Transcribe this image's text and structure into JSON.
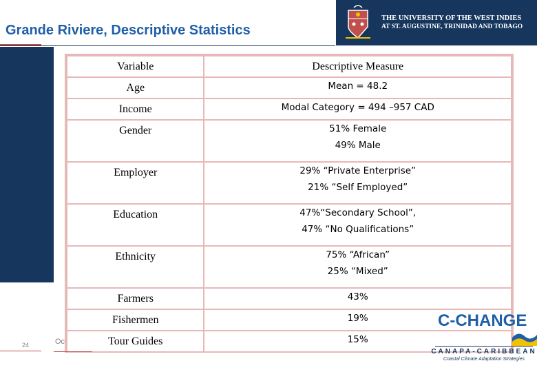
{
  "header": {
    "title": "Grande Riviere, Descriptive Statistics",
    "university_line1": "THE UNIVERSITY OF THE WEST INDIES",
    "university_line2": "AT ST. AUGUSTINE, TRINIDAD AND TOBAGO"
  },
  "table": {
    "headers": {
      "variable": "Variable",
      "measure": "Descriptive Measure"
    },
    "rows": [
      {
        "variable": "Age",
        "measure": [
          "Mean = 48.2"
        ]
      },
      {
        "variable": "Income",
        "measure": [
          "Modal Category = 494 –957 CAD"
        ]
      },
      {
        "variable": "Gender",
        "measure": [
          "51% Female",
          "49% Male"
        ]
      },
      {
        "variable": "Employer",
        "measure": [
          "29% “Private Enterprise”",
          "21% “Self Employed”"
        ]
      },
      {
        "variable": "Education",
        "measure": [
          "47%“Secondary School”,",
          "47% “No Qualifications”"
        ]
      },
      {
        "variable": "Ethnicity",
        "measure": [
          "75% “African”",
          "25% “Mixed”"
        ]
      },
      {
        "variable": "Farmers",
        "measure": [
          "43%"
        ]
      },
      {
        "variable": "Fishermen",
        "measure": [
          "19%"
        ]
      },
      {
        "variable": "Tour Guides",
        "measure": [
          "15%"
        ]
      }
    ]
  },
  "footer": {
    "slide_number": "24",
    "date_fragment": "Oc"
  },
  "logos": {
    "cchange": "C-CHANGE",
    "canapa": "CANAPA-CARIBBEAN",
    "canapa_tagline": "Coastal Climate Adaptation Strategies"
  },
  "colors": {
    "navy": "#17365d",
    "title_blue": "#1f5fa8",
    "table_border": "#e6b9b8",
    "accent_red": "#c0504d"
  }
}
